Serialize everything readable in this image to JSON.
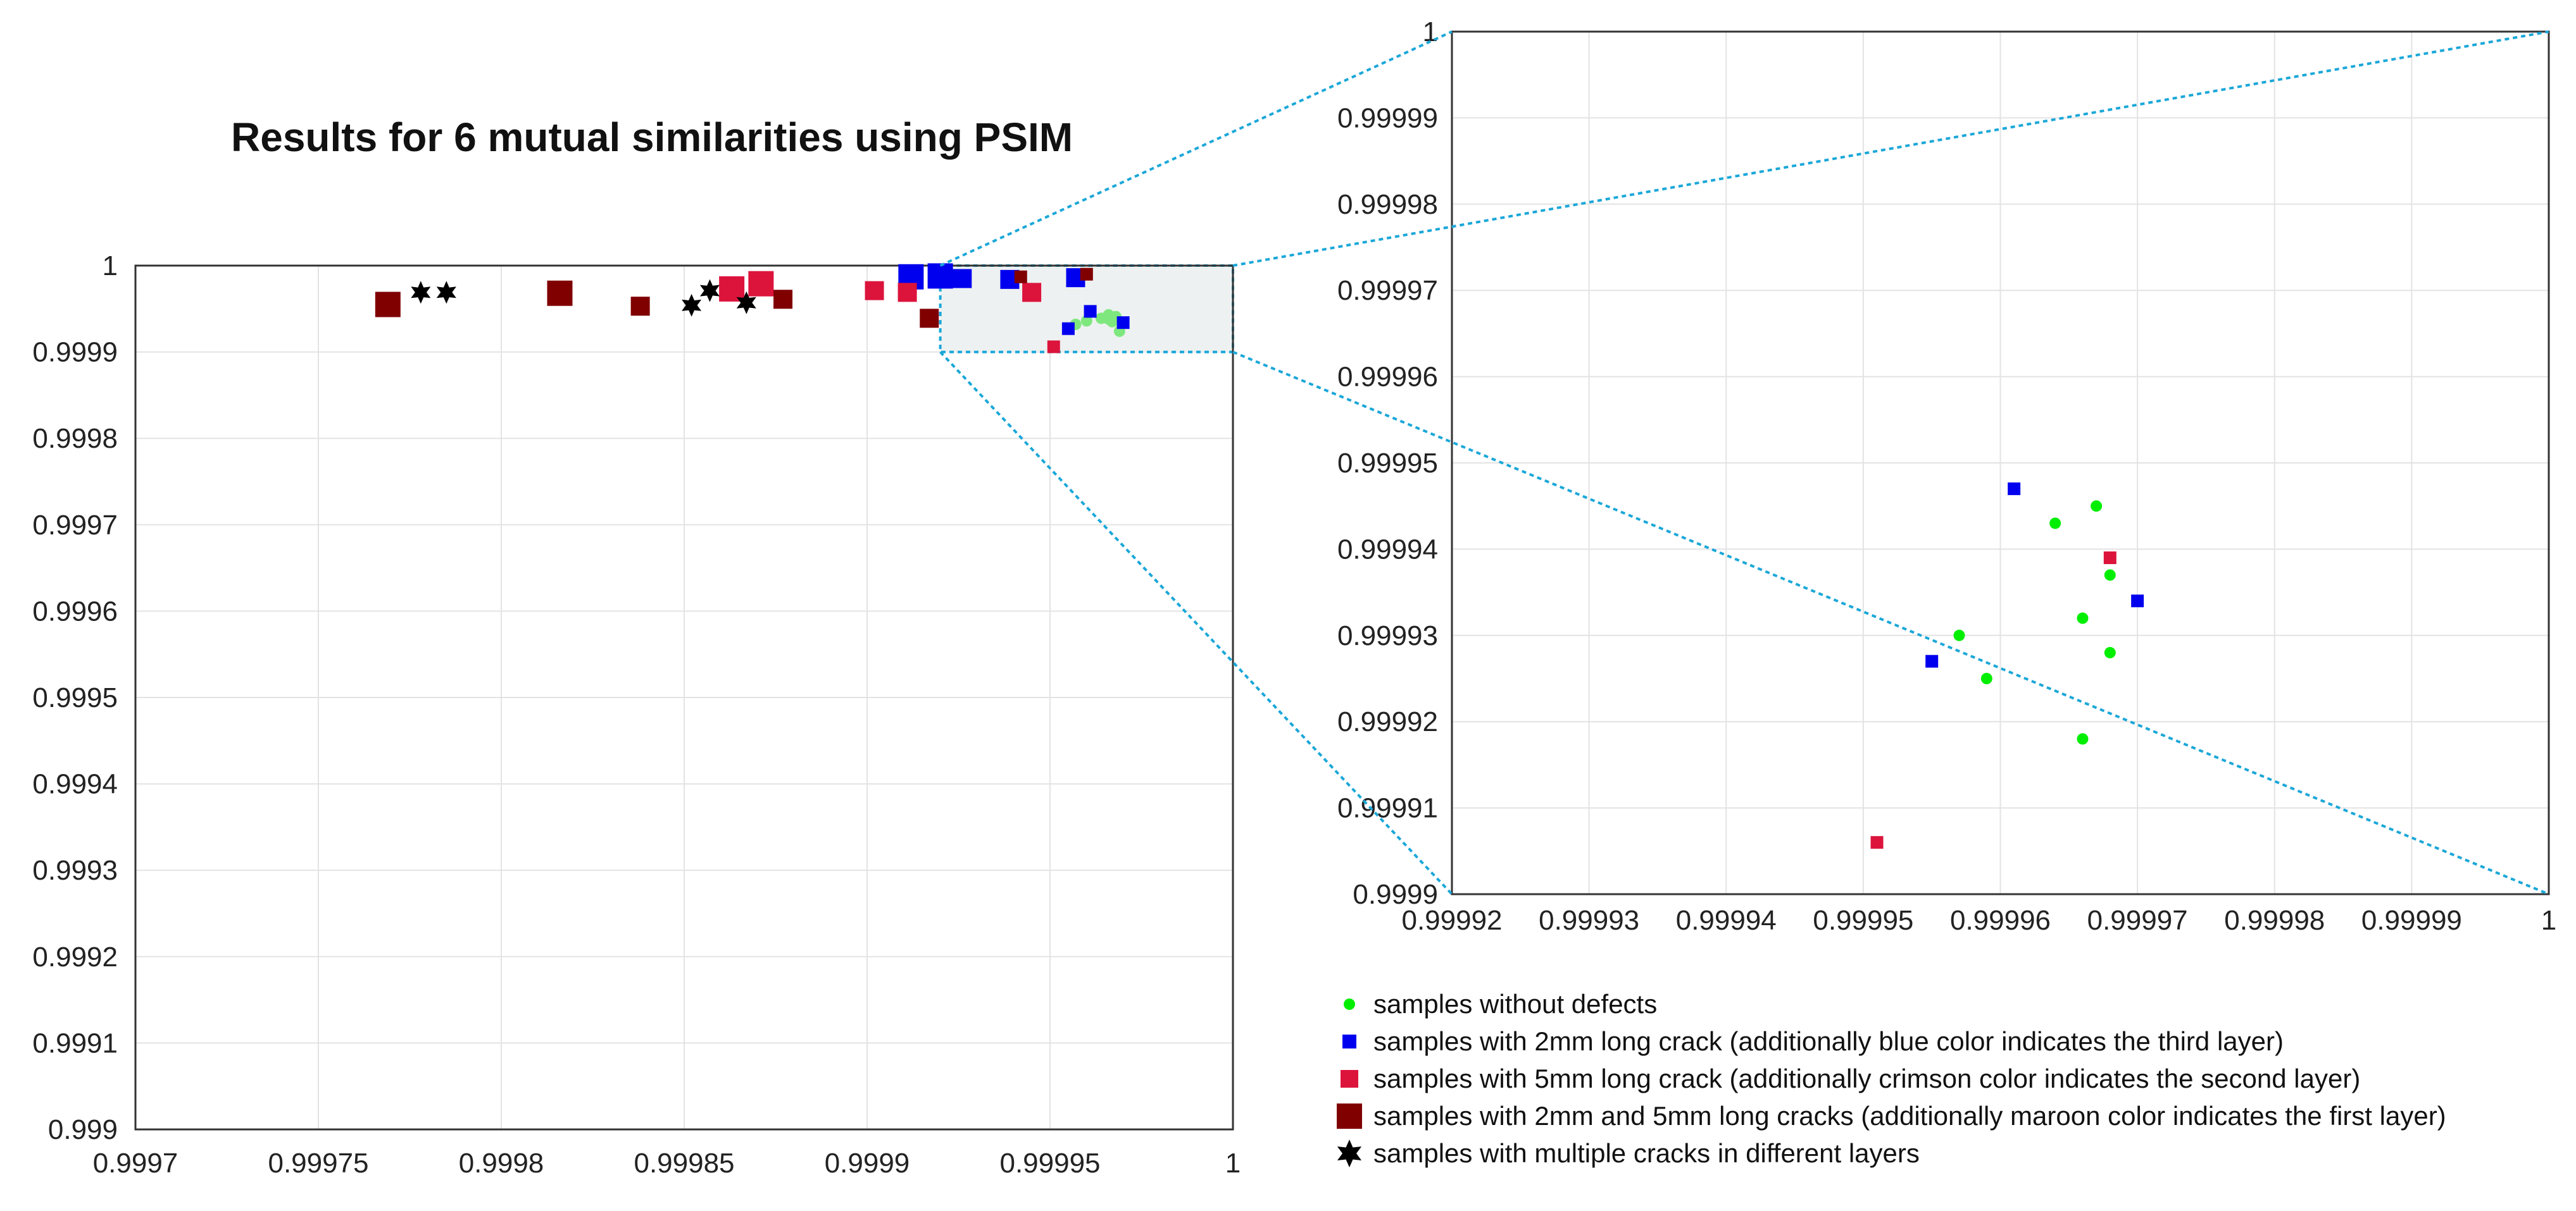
{
  "title": "Results for 6 mutual similarities using PSIM",
  "chart_data": [
    {
      "name": "main-plot",
      "type": "scatter",
      "title": "Results for 6 mutual similarities using PSIM",
      "xlim": [
        0.9997,
        1.0
      ],
      "ylim": [
        0.999,
        1.0
      ],
      "grid": true,
      "x_ticks": [
        0.9997,
        0.99975,
        0.9998,
        0.99985,
        0.9999,
        0.99995,
        1.0
      ],
      "x_tick_labels": [
        "0.9997",
        "0.99975",
        "0.9998",
        "0.99985",
        "0.9999",
        "0.99995",
        "1"
      ],
      "y_ticks": [
        0.999,
        0.9991,
        0.9992,
        0.9993,
        0.9994,
        0.9995,
        0.9996,
        0.9997,
        0.9998,
        0.9999,
        1.0
      ],
      "y_tick_labels": [
        "0.999",
        "0.9991",
        "0.9992",
        "0.9993",
        "0.9994",
        "0.9995",
        "0.9996",
        "0.9997",
        "0.9998",
        "0.9999",
        "1"
      ],
      "zoom_region": {
        "x": [
          0.99992,
          1.0
        ],
        "y": [
          0.9999,
          1.0
        ]
      },
      "series": [
        {
          "name": "samples without defects",
          "marker": "dot",
          "color": "#7ee87e",
          "points": [
            [
              0.999957,
              0.999932
            ],
            [
              0.99996,
              0.999936
            ],
            [
              0.999964,
              0.999939
            ],
            [
              0.999966,
              0.999943
            ],
            [
              0.999967,
              0.999935
            ],
            [
              0.999968,
              0.999941
            ],
            [
              0.999969,
              0.999924
            ],
            [
              0.999966,
              0.999938
            ]
          ]
        },
        {
          "name": "samples with 2mm long crack (additionally blue color indicates the third layer)",
          "marker": "square",
          "color": "#0000ee",
          "points": [
            [
              0.999912,
              0.999987
            ],
            [
              0.99992,
              0.999988
            ],
            [
              0.999926,
              0.999985
            ],
            [
              0.999939,
              0.999984
            ],
            [
              0.999957,
              0.999986
            ],
            [
              0.999925,
              0.999988
            ],
            [
              0.999955,
              0.999927
            ],
            [
              0.999961,
              0.999947
            ],
            [
              0.99997,
              0.999934
            ]
          ],
          "sizes": [
            3,
            3,
            2,
            2,
            2,
            1,
            1,
            1,
            1
          ]
        },
        {
          "name": "samples with 5mm long crack (additionally crimson color indicates the second layer)",
          "marker": "square",
          "color": "#dc143c",
          "points": [
            [
              0.999871,
              0.999979
            ],
            [
              0.999863,
              0.999973
            ],
            [
              0.999902,
              0.999971
            ],
            [
              0.999911,
              0.999969
            ],
            [
              0.999945,
              0.999969
            ],
            [
              0.999951,
              0.999906
            ]
          ],
          "sizes": [
            3,
            3,
            2,
            2,
            2,
            1
          ]
        },
        {
          "name": "samples with 2mm and 5mm long cracks (additionally maroon color indicates the first layer)",
          "marker": "square",
          "color": "#800000",
          "points": [
            [
              0.999769,
              0.999955
            ],
            [
              0.999816,
              0.999968
            ],
            [
              0.999838,
              0.999953
            ],
            [
              0.999877,
              0.999961
            ],
            [
              0.999917,
              0.999939
            ],
            [
              0.999942,
              0.999987
            ],
            [
              0.99996,
              0.99999
            ]
          ],
          "sizes": [
            3,
            3,
            2,
            2,
            2,
            1,
            1
          ]
        },
        {
          "name": "samples with multiple cracks in different layers",
          "marker": "star",
          "color": "#000000",
          "points": [
            [
              0.999778,
              0.999969
            ],
            [
              0.999785,
              0.999969
            ],
            [
              0.999857,
              0.999971
            ],
            [
              0.999852,
              0.999954
            ],
            [
              0.999867,
              0.999957
            ]
          ]
        }
      ]
    },
    {
      "name": "zoom-plot",
      "type": "scatter",
      "xlim": [
        0.99992,
        1.0
      ],
      "ylim": [
        0.9999,
        1.0
      ],
      "grid": true,
      "x_ticks": [
        0.99992,
        0.99993,
        0.99994,
        0.99995,
        0.99996,
        0.99997,
        0.99998,
        0.99999,
        1.0
      ],
      "x_tick_labels": [
        "0.99992",
        "0.99993",
        "0.99994",
        "0.99995",
        "0.99996",
        "0.99997",
        "0.99998",
        "0.99999",
        "1"
      ],
      "y_ticks": [
        0.9999,
        0.99991,
        0.99992,
        0.99993,
        0.99994,
        0.99995,
        0.99996,
        0.99997,
        0.99998,
        0.99999,
        1.0
      ],
      "y_tick_labels": [
        "0.9999",
        "0.99991",
        "0.99992",
        "0.99993",
        "0.99994",
        "0.99995",
        "0.99996",
        "0.99997",
        "0.99998",
        "0.99999",
        "1"
      ],
      "series": [
        {
          "name": "samples without defects",
          "marker": "dot",
          "color": "#00ee00",
          "points": [
            [
              0.999964,
              0.999943
            ],
            [
              0.999967,
              0.999945
            ],
            [
              0.999957,
              0.99993
            ],
            [
              0.999959,
              0.999925
            ],
            [
              0.999966,
              0.999932
            ],
            [
              0.999968,
              0.999937
            ],
            [
              0.999968,
              0.999928
            ],
            [
              0.999966,
              0.999918
            ]
          ]
        },
        {
          "name": "samples with 2mm long crack (additionally blue color indicates the third layer)",
          "marker": "square",
          "color": "#0000ee",
          "points": [
            [
              0.999961,
              0.999947
            ],
            [
              0.999955,
              0.999927
            ],
            [
              0.99997,
              0.999934
            ]
          ]
        },
        {
          "name": "samples with 5mm long crack (additionally crimson color indicates the second layer)",
          "marker": "square",
          "color": "#dc143c",
          "points": [
            [
              0.999968,
              0.999939
            ],
            [
              0.999951,
              0.999906
            ]
          ]
        }
      ]
    }
  ],
  "legend": [
    {
      "label": "samples without defects",
      "marker": "dot",
      "color": "#00ee00"
    },
    {
      "label": "samples with 2mm long crack (additionally blue color indicates the third layer)",
      "marker": "square",
      "color": "#0000ee"
    },
    {
      "label": "samples with 5mm long crack (additionally crimson color indicates the second layer)",
      "marker": "square",
      "color": "#dc143c"
    },
    {
      "label": "samples with 2mm and 5mm long cracks (additionally maroon color indicates the first layer)",
      "marker": "square",
      "color": "#800000"
    },
    {
      "label": "samples with multiple cracks in different layers",
      "marker": "star",
      "color": "#000000"
    }
  ],
  "colors": {
    "connector": "#1aa7d8",
    "grid": "#e3e3e3",
    "zoom_fill": "#eef1f1"
  }
}
